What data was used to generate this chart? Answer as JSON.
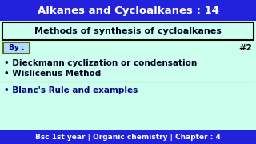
{
  "title": "Alkanes and Cycloalkanes : 14",
  "title_bg": "#2222dd",
  "title_color": "#ffffff",
  "body_bg": "#ccffee",
  "subtitle": "Methods of synthesis of cycloalkanes",
  "subtitle_box_color": "#000000",
  "by_label": "By :",
  "by_box_color": "#666600",
  "by_text_color": "#000080",
  "by_bg": "#aaddff",
  "hash_label": "#2",
  "hash_color": "#000000",
  "bullet1": "• Dieckmann cyclization or condensation",
  "bullet2": "• Wislicenus Method",
  "bullet3": "• Blanc's Rule and examples",
  "footer": "Bsc 1st year | Organic chemistry | Chapter : 4",
  "footer_bg": "#2222dd",
  "footer_color": "#ffffff",
  "divider_color": "#888888",
  "bullet_color": "#000022",
  "bullet3_color": "#000080"
}
